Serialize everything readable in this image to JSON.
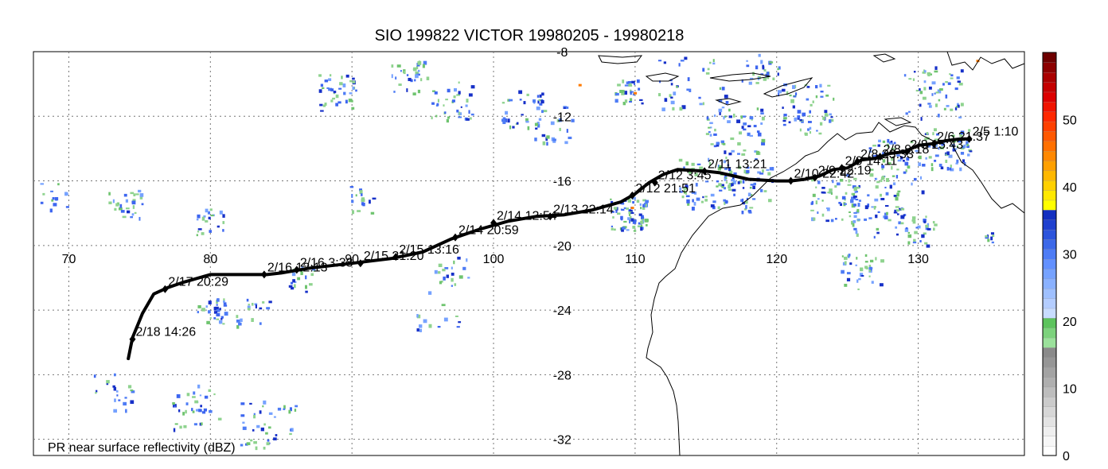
{
  "title": "SIO 199822 VICTOR 19980205 - 19980218",
  "map": {
    "lon_range": [
      67.5,
      137.5
    ],
    "lat_range": [
      -33,
      -8
    ],
    "lon_ticks": [
      70,
      80,
      90,
      100,
      110,
      120,
      130
    ],
    "lat_ticks": [
      -8,
      -12,
      -16,
      -20,
      -24,
      -28,
      -32
    ],
    "lon_tick_labels": [
      "70",
      "80",
      "90",
      "100",
      "110",
      "120",
      "130"
    ],
    "lat_tick_labels": [
      "-8",
      "-12",
      "-16",
      "-20",
      "-24",
      "-28",
      "-32"
    ],
    "caption": "PR near surface reflectivity (dBZ)"
  },
  "track": {
    "path": [
      [
        133.6,
        -13.4
      ],
      [
        133.0,
        -13.4
      ],
      [
        132.0,
        -13.5
      ],
      [
        131.0,
        -13.7
      ],
      [
        130.0,
        -13.8
      ],
      [
        129.0,
        -14.2
      ],
      [
        128.0,
        -14.3
      ],
      [
        127.0,
        -14.6
      ],
      [
        126.0,
        -14.7
      ],
      [
        125.0,
        -15.2
      ],
      [
        124.0,
        -15.3
      ],
      [
        123.0,
        -15.7
      ],
      [
        122.0,
        -15.9
      ],
      [
        121.0,
        -16.0
      ],
      [
        120.0,
        -16.0
      ],
      [
        118.0,
        -15.9
      ],
      [
        116.0,
        -15.5
      ],
      [
        115.0,
        -15.4
      ],
      [
        113.0,
        -15.3
      ],
      [
        112.0,
        -15.6
      ],
      [
        111.0,
        -16.1
      ],
      [
        110.0,
        -16.8
      ],
      [
        109.0,
        -17.3
      ],
      [
        107.0,
        -17.8
      ],
      [
        105.0,
        -18.1
      ],
      [
        103.0,
        -18.2
      ],
      [
        101.0,
        -18.5
      ],
      [
        99.0,
        -19.0
      ],
      [
        97.0,
        -19.6
      ],
      [
        95.0,
        -20.4
      ],
      [
        92.8,
        -20.8
      ],
      [
        90.0,
        -21.1
      ],
      [
        87.0,
        -21.4
      ],
      [
        85.0,
        -21.7
      ],
      [
        84.0,
        -21.8
      ],
      [
        80.0,
        -21.8
      ],
      [
        78.0,
        -22.3
      ],
      [
        77.0,
        -22.6
      ],
      [
        76.0,
        -23.0
      ],
      [
        75.2,
        -24.2
      ],
      [
        74.5,
        -25.7
      ],
      [
        74.2,
        -27.0
      ]
    ],
    "points": [
      {
        "label": "2/5  1:10",
        "lon": 133.6,
        "lat": -13.4
      },
      {
        "label": "2/6 21:37",
        "lon": 131.1,
        "lat": -13.7
      },
      {
        "label": "2/8 15:43",
        "lon": 129.2,
        "lat": -14.2
      },
      {
        "label": "2/8  9:18",
        "lon": 127.3,
        "lat": -14.5
      },
      {
        "label": "2/8 23:33",
        "lon": 125.7,
        "lat": -14.8
      },
      {
        "label": "2/9 14:11",
        "lon": 124.6,
        "lat": -15.2
      },
      {
        "label": "2/9 22:19",
        "lon": 122.7,
        "lat": -15.8
      },
      {
        "label": "2/10 22:42",
        "lon": 121.0,
        "lat": -16.0
      },
      {
        "label": "2/11 13:21",
        "lon": 114.9,
        "lat": -15.4
      },
      {
        "label": "2/12  3:45",
        "lon": 111.4,
        "lat": -16.1
      },
      {
        "label": "2/12 21:51",
        "lon": 109.8,
        "lat": -16.9
      },
      {
        "label": "2/13 22:14",
        "lon": 104.0,
        "lat": -18.2
      },
      {
        "label": "2/14 12:54",
        "lon": 100.0,
        "lat": -18.6
      },
      {
        "label": "2/14 20:59",
        "lon": 97.3,
        "lat": -19.5
      },
      {
        "label": "2/15 13:16",
        "lon": 93.1,
        "lat": -20.7
      },
      {
        "label": "2/15 21:20",
        "lon": 90.6,
        "lat": -21.1
      },
      {
        "label": "2/16  3:38",
        "lon": 86.1,
        "lat": -21.5
      },
      {
        "label": "2/16 12:13",
        "lon": 83.8,
        "lat": -21.8
      },
      {
        "label": "2/17 20:29",
        "lon": 76.8,
        "lat": -22.7
      },
      {
        "label": "2/18 14:26",
        "lon": 74.5,
        "lat": -25.8
      }
    ]
  },
  "colorbar": {
    "label_values": [
      "0",
      "10",
      "20",
      "30",
      "40",
      "50"
    ],
    "colors": [
      "#ffffff",
      "#f7f7f7",
      "#efefef",
      "#e3e3e3",
      "#d7d7d7",
      "#cbcbcb",
      "#bdbdbd",
      "#afafaf",
      "#a3a3a3",
      "#969696",
      "#8a8a8a",
      "#9be19b",
      "#7cd27c",
      "#5cc35c",
      "#c8dcff",
      "#b4cdff",
      "#9fc0ff",
      "#8ab1ff",
      "#76a2ff",
      "#6290ff",
      "#4e7cf5",
      "#3c68e8",
      "#2c54dc",
      "#1f40cf",
      "#1430c0",
      "#ffff00",
      "#ffe800",
      "#ffd000",
      "#ffb800",
      "#ffa000",
      "#ff8800",
      "#ff7000",
      "#ff5800",
      "#ff4000",
      "#ff2800",
      "#f01400",
      "#dc0000",
      "#c40000",
      "#aa0000",
      "#8c0000",
      "#6e0000"
    ]
  },
  "colors": {
    "rain_light": "#8fd38f",
    "rain_mid": "#3d66f0",
    "rain_heavy": "#1630c8",
    "rain_intense": "#ff7a00",
    "track": "#000000"
  }
}
